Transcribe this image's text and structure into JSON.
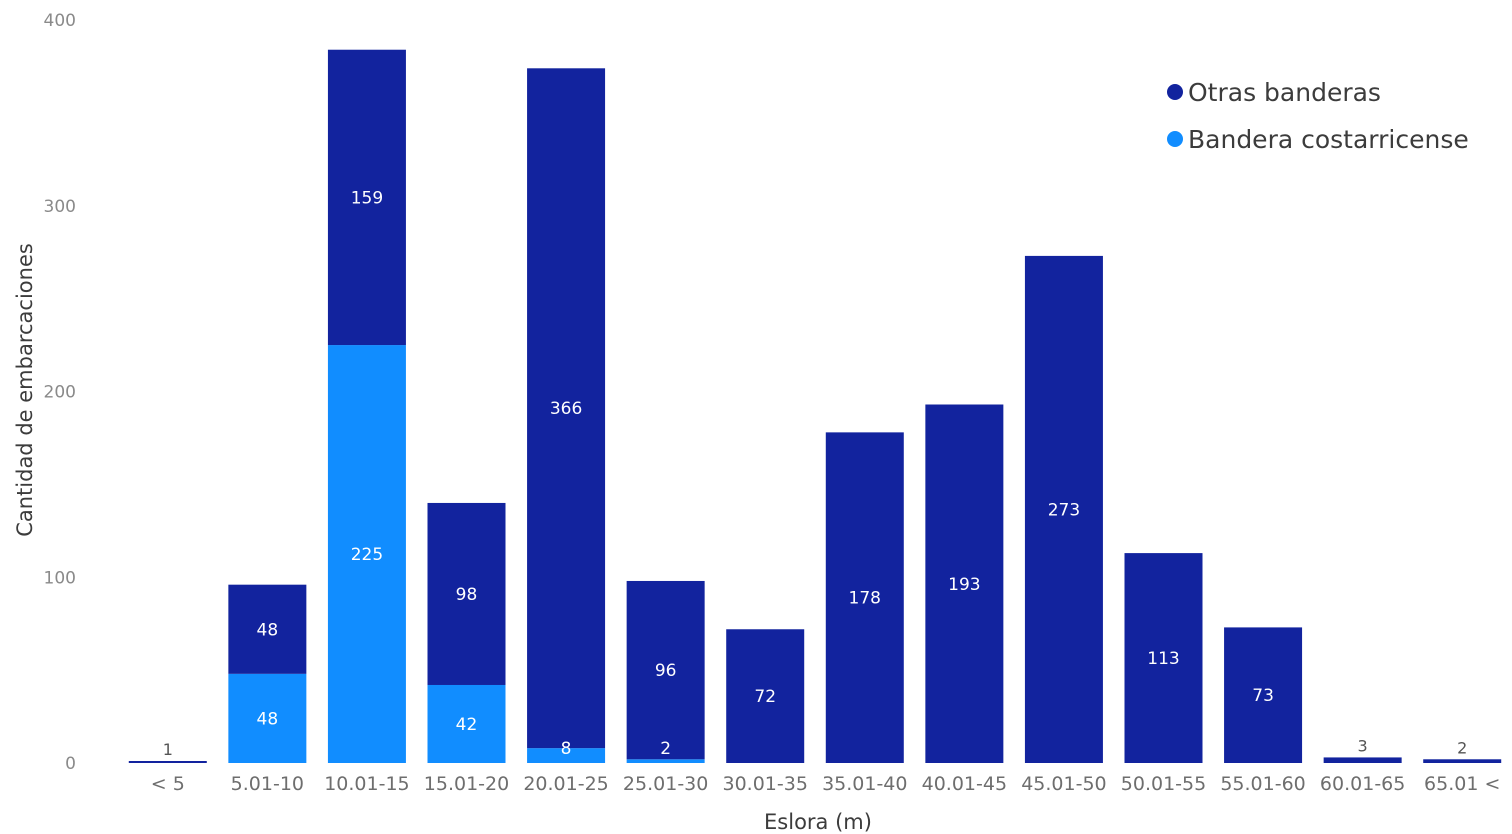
{
  "chart_data": {
    "type": "bar",
    "stacked": true,
    "xlabel": "Eslora (m)",
    "ylabel": "Cantidad de embarcaciones",
    "ylim": [
      0,
      400
    ],
    "yticks": [
      0,
      100,
      200,
      300,
      400
    ],
    "categories": [
      "< 5",
      "5.01-10",
      "10.01-15",
      "15.01-20",
      "20.01-25",
      "25.01-30",
      "30.01-35",
      "35.01-40",
      "40.01-45",
      "45.01-50",
      "50.01-55",
      "55.01-60",
      "60.01-65",
      "65.01 <"
    ],
    "series": [
      {
        "name": "Bandera costarricense",
        "color": "#118DFF",
        "values": [
          0,
          48,
          225,
          42,
          8,
          2,
          0,
          0,
          0,
          0,
          0,
          0,
          0,
          0
        ],
        "labels": [
          "",
          "48",
          "225",
          "42",
          "8",
          "2",
          "",
          "",
          "",
          "",
          "",
          "",
          "",
          ""
        ]
      },
      {
        "name": "Otras banderas",
        "color": "#12239E",
        "values": [
          1,
          48,
          159,
          98,
          366,
          96,
          72,
          178,
          193,
          273,
          113,
          73,
          3,
          2
        ],
        "labels": [
          "1",
          "48",
          "159",
          "98",
          "366",
          "96",
          "72",
          "178",
          "193",
          "273",
          "113",
          "73",
          "3",
          "2"
        ]
      }
    ],
    "legend": {
      "position": "top-right",
      "items": [
        {
          "name": "Otras banderas",
          "color": "#12239E"
        },
        {
          "name": "Bandera costarricense",
          "color": "#118DFF"
        }
      ]
    },
    "grid": false
  }
}
